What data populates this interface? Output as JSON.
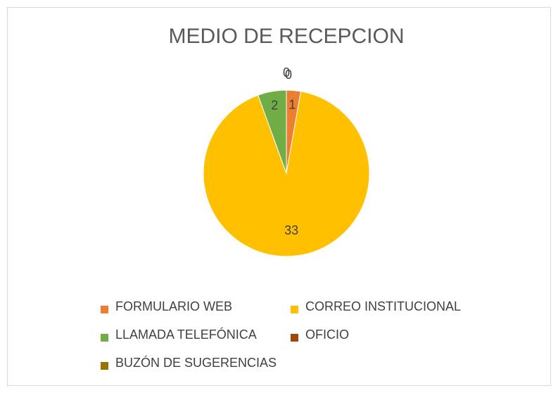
{
  "chart_data": {
    "type": "pie",
    "title": "MEDIO DE RECEPCION",
    "categories": [
      "FORMULARIO WEB",
      "CORREO INSTITUCIONAL",
      "LLAMADA TELEFÓNICA",
      "OFICIO",
      "BUZÓN DE SUGERENCIAS"
    ],
    "values": [
      1,
      33,
      2,
      0,
      0
    ],
    "colors": [
      "#ed7d31",
      "#ffc000",
      "#70ad47",
      "#9e480e",
      "#997300"
    ],
    "legend": "bottom"
  }
}
